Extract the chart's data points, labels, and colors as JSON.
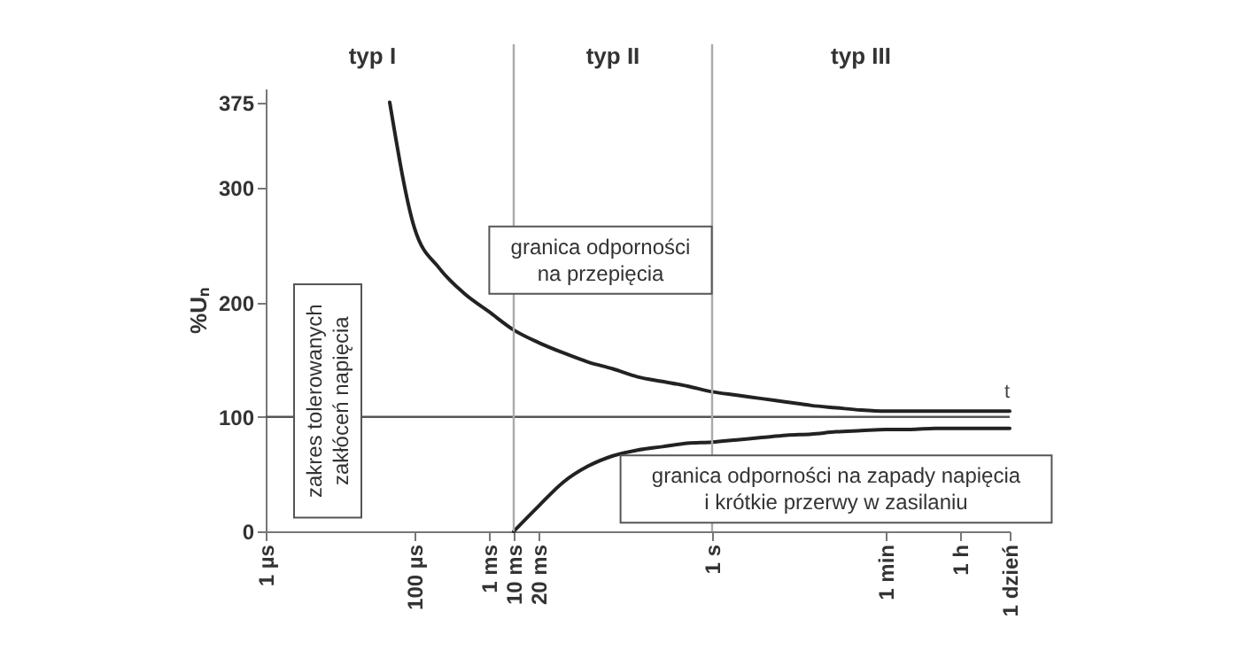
{
  "chart_data": {
    "type": "line",
    "ylabel": "%Uₙ",
    "categories": [
      "1 µs",
      null,
      null,
      null,
      null,
      null,
      "100 µs",
      null,
      null,
      "1 ms",
      "10 ms",
      "20 ms",
      null,
      null,
      null,
      null,
      null,
      null,
      "1 s",
      null,
      null,
      null,
      null,
      null,
      null,
      "1 min",
      null,
      null,
      "1 h",
      null,
      "1 dzień"
    ],
    "ylim": [
      0,
      387
    ],
    "yticks": [
      0,
      100,
      200,
      300,
      375
    ],
    "grid": false,
    "legend": false,
    "marker": "none",
    "line_style": "solid",
    "series": [
      {
        "color": "#222222",
        "values": [
          null,
          null,
          null,
          null,
          null,
          375,
          265,
          230,
          208,
          192,
          176,
          165,
          156,
          148,
          142,
          135,
          131,
          127,
          122,
          119,
          116,
          113,
          110,
          108,
          106,
          105,
          105,
          105,
          105,
          105,
          105
        ]
      },
      {
        "color": "#222222",
        "values": [
          null,
          null,
          null,
          null,
          null,
          null,
          null,
          null,
          null,
          null,
          0,
          22,
          43,
          57,
          66,
          71,
          74,
          77,
          78,
          80,
          82,
          84,
          85,
          87,
          88,
          89,
          89,
          90,
          90,
          90,
          90
        ]
      }
    ],
    "ref_lines": [
      {
        "axis": "y",
        "value": 100,
        "label": "t",
        "color": "#555555"
      },
      {
        "axis": "x",
        "value": "10 ms",
        "color": "#aaaaaa"
      },
      {
        "axis": "x",
        "value": "1 s",
        "color": "#aaaaaa"
      }
    ],
    "annotations": [
      "typ I",
      "typ II",
      "typ III",
      "granica odporności\nna przepięcia",
      "granica odporności na zapady napięcia\ni krótkie przerwy w zasilaniu",
      "zakres tolerowanych\nzakłóceń napięcia"
    ]
  }
}
